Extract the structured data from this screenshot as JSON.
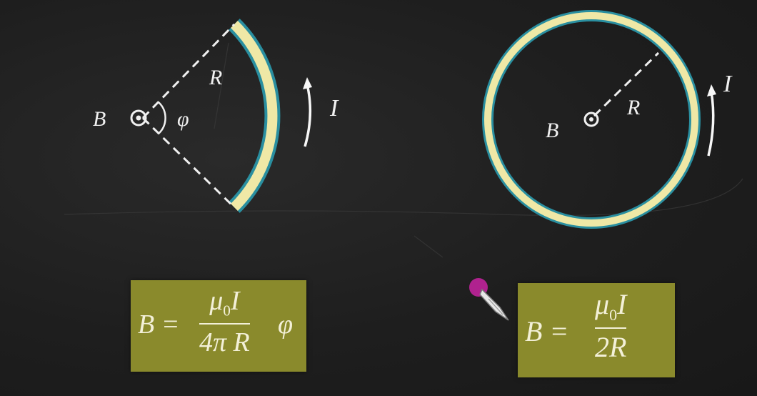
{
  "left_diagram": {
    "field_label": "B",
    "angle_label": "φ",
    "radius_label": "R",
    "current_label": "I"
  },
  "right_diagram": {
    "field_label": "B",
    "radius_label": "R",
    "current_label": "I"
  },
  "formula_left": {
    "lhs": "B =",
    "mu": "μ",
    "mu_sub": "0",
    "current": "I",
    "denominator": "4π R",
    "suffix": "φ"
  },
  "formula_right": {
    "lhs": "B =",
    "mu": "μ",
    "mu_sub": "0",
    "current": "I",
    "denominator": "2R"
  },
  "colors": {
    "board": "#1f1f1f",
    "wire_fill": "#efe8a6",
    "wire_edge": "#2a8fa0",
    "formula_box": "#8a8a2c",
    "chalk": "#f0f0f0",
    "pointer": "#b0228f"
  }
}
